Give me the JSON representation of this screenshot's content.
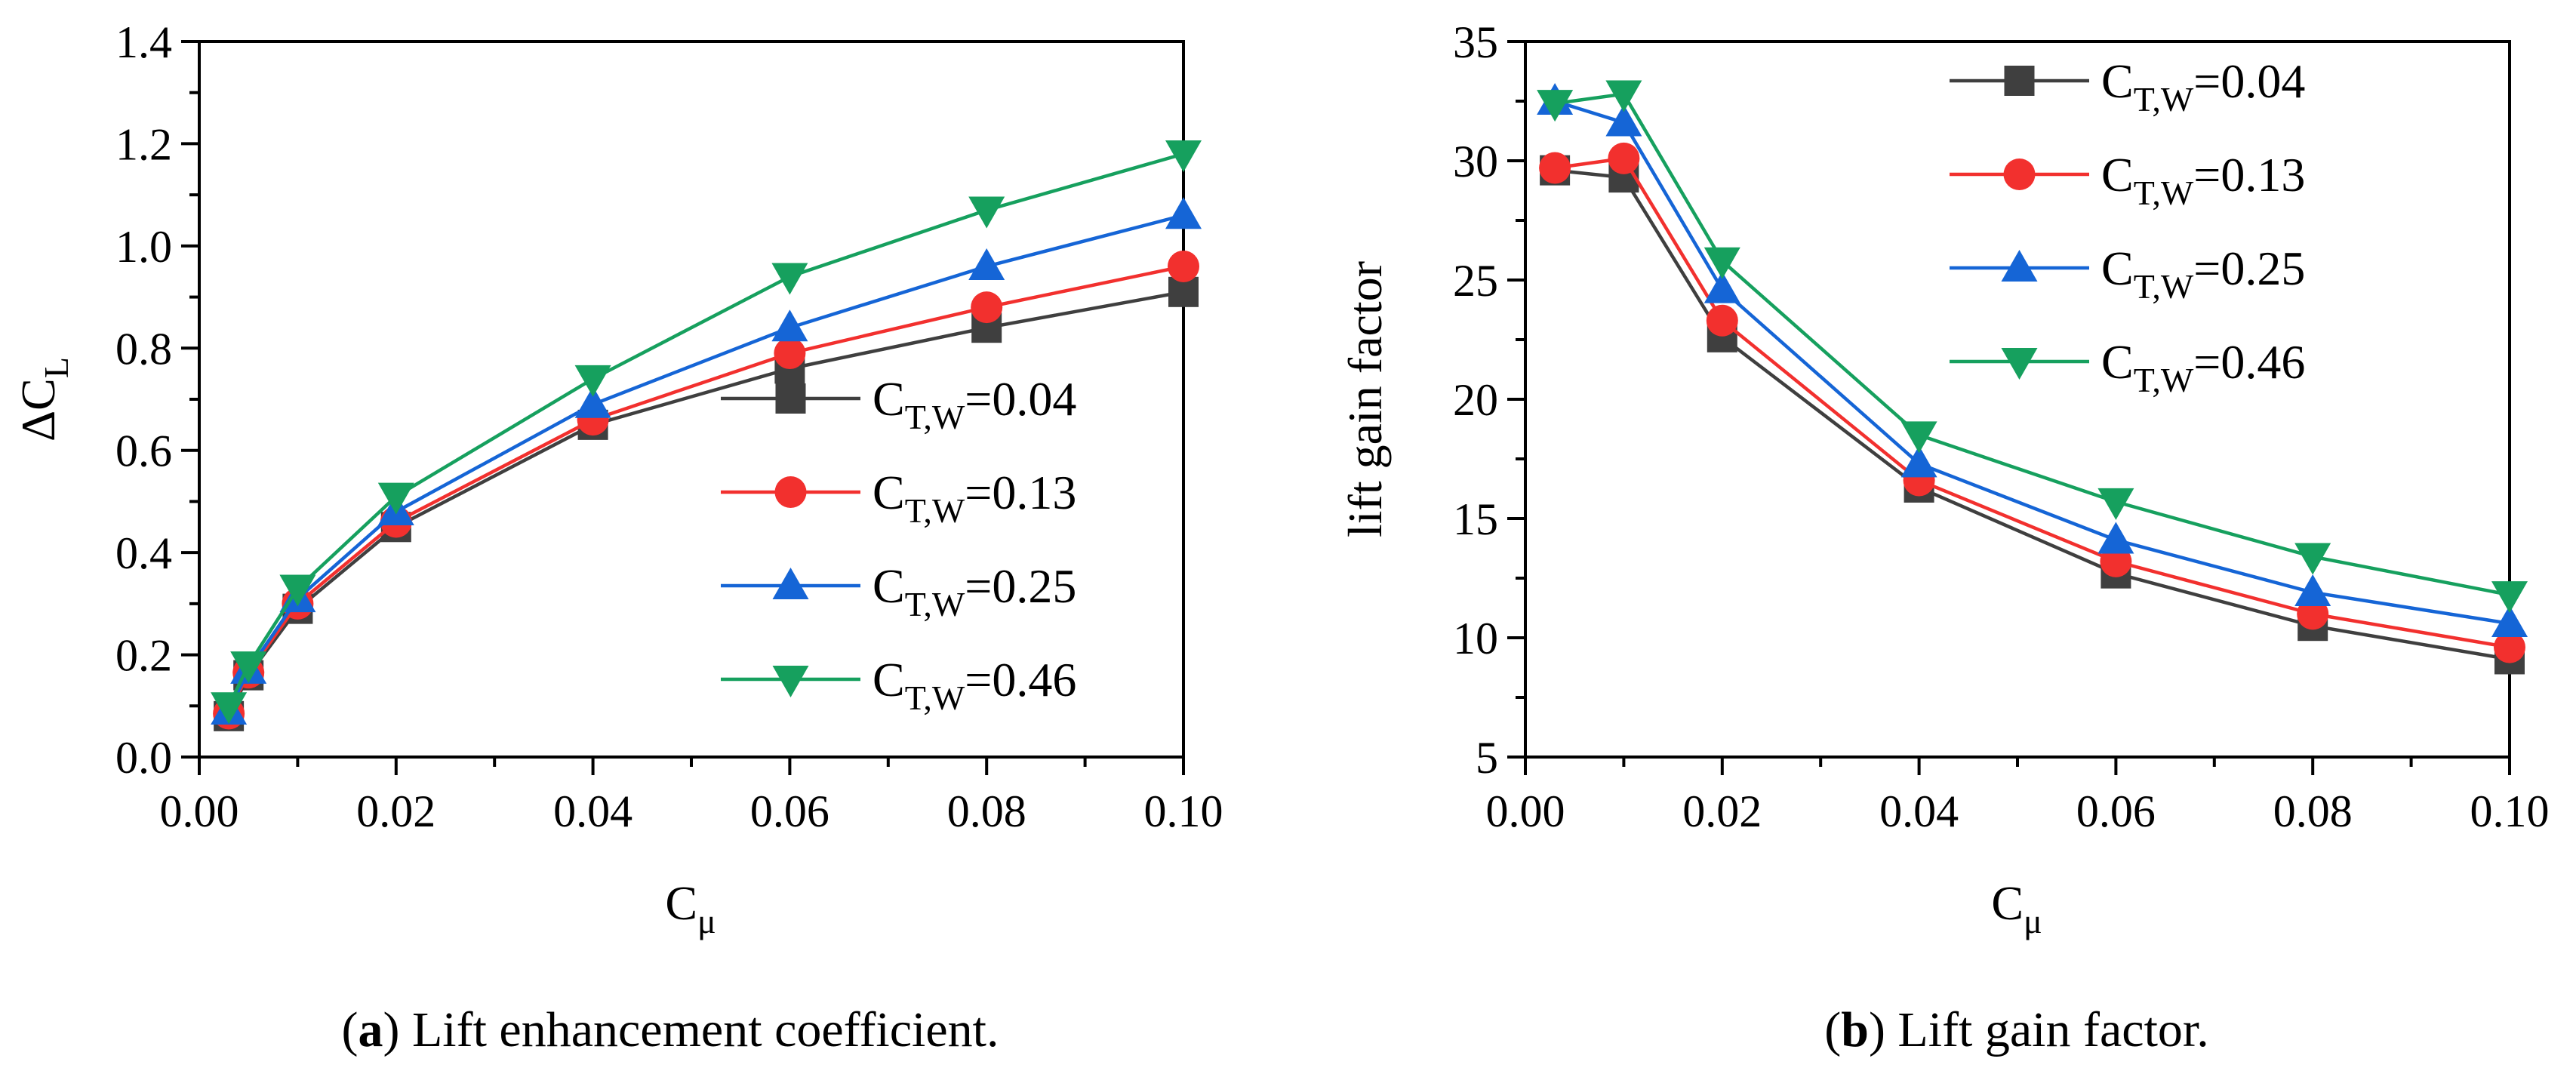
{
  "colors": {
    "series": [
      "#3f3f3f",
      "#f2302e",
      "#1565d6",
      "#16a05e"
    ],
    "axis": "#000000",
    "background": "#ffffff"
  },
  "chart_data": [
    {
      "id": "a",
      "type": "line",
      "caption_letter": "a",
      "caption_open": "(",
      "caption_close": ")",
      "caption_text": " Lift enhancement coefficient.",
      "xlabel": {
        "main": "C",
        "sub": "μ"
      },
      "ylabel": {
        "main": "ΔC",
        "sub": "L"
      },
      "xlim": [
        0.0,
        0.1
      ],
      "ylim": [
        0.0,
        1.4
      ],
      "xticks": [
        0.0,
        0.02,
        0.04,
        0.06,
        0.08,
        0.1
      ],
      "xtick_labels": [
        "0.00",
        "0.02",
        "0.04",
        "0.06",
        "0.08",
        "0.10"
      ],
      "yticks": [
        0.0,
        0.2,
        0.4,
        0.6,
        0.8,
        1.0,
        1.2,
        1.4
      ],
      "ytick_labels": [
        "0.0",
        "0.2",
        "0.4",
        "0.6",
        "0.8",
        "1.0",
        "1.2",
        "1.4"
      ],
      "legend_position": "center-right",
      "x": [
        0.003,
        0.005,
        0.01,
        0.02,
        0.04,
        0.06,
        0.08,
        0.1
      ],
      "series": [
        {
          "name": "C_T,W=0.04",
          "label_main": "C",
          "label_sub": "T,W",
          "label_value": "=0.04",
          "marker": "square",
          "values": [
            0.08,
            0.16,
            0.29,
            0.45,
            0.65,
            0.76,
            0.84,
            0.91
          ]
        },
        {
          "name": "C_T,W=0.13",
          "label_main": "C",
          "label_sub": "T,W",
          "label_value": "=0.13",
          "marker": "circle",
          "values": [
            0.085,
            0.165,
            0.3,
            0.46,
            0.66,
            0.79,
            0.88,
            0.96
          ]
        },
        {
          "name": "C_T,W=0.25",
          "label_main": "C",
          "label_sub": "T,W",
          "label_value": "=0.25",
          "marker": "triangle-up",
          "values": [
            0.09,
            0.17,
            0.31,
            0.48,
            0.69,
            0.84,
            0.96,
            1.06
          ]
        },
        {
          "name": "C_T,W=0.46",
          "label_main": "C",
          "label_sub": "T,W",
          "label_value": "=0.46",
          "marker": "triangle-down",
          "values": [
            0.1,
            0.18,
            0.33,
            0.51,
            0.74,
            0.94,
            1.07,
            1.18
          ]
        }
      ]
    },
    {
      "id": "b",
      "type": "line",
      "caption_letter": "b",
      "caption_open": "(",
      "caption_close": ")",
      "caption_text": " Lift gain factor.",
      "xlabel": {
        "main": "C",
        "sub": "μ"
      },
      "ylabel": {
        "main": "lift gain factor",
        "sub": ""
      },
      "xlim": [
        0.0,
        0.1
      ],
      "ylim": [
        5,
        35
      ],
      "xticks": [
        0.0,
        0.02,
        0.04,
        0.06,
        0.08,
        0.1
      ],
      "xtick_labels": [
        "0.00",
        "0.02",
        "0.04",
        "0.06",
        "0.08",
        "0.10"
      ],
      "yticks": [
        5,
        10,
        15,
        20,
        25,
        30,
        35
      ],
      "ytick_labels": [
        "5",
        "10",
        "15",
        "20",
        "25",
        "30",
        "35"
      ],
      "legend_position": "top-right",
      "x": [
        0.003,
        0.01,
        0.02,
        0.04,
        0.06,
        0.08,
        0.1
      ],
      "series": [
        {
          "name": "C_T,W=0.04",
          "label_main": "C",
          "label_sub": "T,W",
          "label_value": "=0.04",
          "marker": "square",
          "values": [
            29.6,
            29.3,
            22.6,
            16.3,
            12.7,
            10.5,
            9.1
          ]
        },
        {
          "name": "C_T,W=0.13",
          "label_main": "C",
          "label_sub": "T,W",
          "label_value": "=0.13",
          "marker": "circle",
          "values": [
            29.7,
            30.1,
            23.3,
            16.6,
            13.2,
            11.0,
            9.6
          ]
        },
        {
          "name": "C_T,W=0.25",
          "label_main": "C",
          "label_sub": "T,W",
          "label_value": "=0.25",
          "marker": "triangle-up",
          "values": [
            32.5,
            31.6,
            24.6,
            17.3,
            14.1,
            11.9,
            10.6
          ]
        },
        {
          "name": "C_T,W=0.46",
          "label_main": "C",
          "label_sub": "T,W",
          "label_value": "=0.46",
          "marker": "triangle-down",
          "values": [
            32.4,
            32.8,
            25.8,
            18.5,
            15.7,
            13.4,
            11.8
          ]
        }
      ]
    }
  ]
}
